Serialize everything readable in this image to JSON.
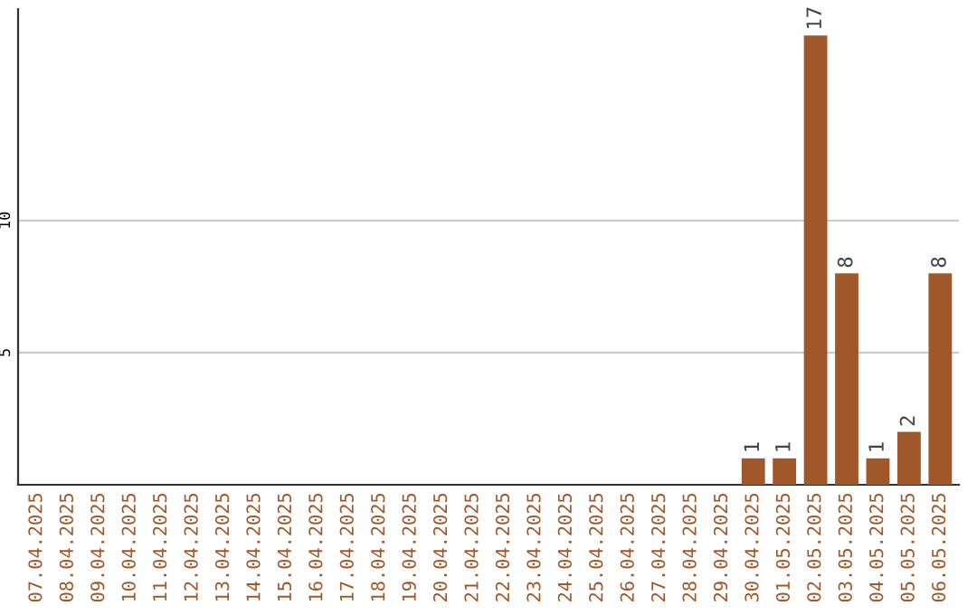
{
  "chart_data": {
    "type": "bar",
    "categories": [
      "07.04.2025",
      "08.04.2025",
      "09.04.2025",
      "10.04.2025",
      "11.04.2025",
      "12.04.2025",
      "13.04.2025",
      "14.04.2025",
      "15.04.2025",
      "16.04.2025",
      "17.04.2025",
      "18.04.2025",
      "19.04.2025",
      "20.04.2025",
      "21.04.2025",
      "22.04.2025",
      "23.04.2025",
      "24.04.2025",
      "25.04.2025",
      "26.04.2025",
      "27.04.2025",
      "28.04.2025",
      "29.04.2025",
      "30.04.2025",
      "01.05.2025",
      "02.05.2025",
      "03.05.2025",
      "04.05.2025",
      "05.05.2025",
      "06.05.2025"
    ],
    "values": [
      0,
      0,
      0,
      0,
      0,
      0,
      0,
      0,
      0,
      0,
      0,
      0,
      0,
      0,
      0,
      0,
      0,
      0,
      0,
      0,
      0,
      0,
      0,
      1,
      1,
      17,
      8,
      1,
      2,
      8
    ],
    "value_labels": [
      null,
      null,
      null,
      null,
      null,
      null,
      null,
      null,
      null,
      null,
      null,
      null,
      null,
      null,
      null,
      null,
      null,
      null,
      null,
      null,
      null,
      null,
      null,
      "1",
      "1",
      "17",
      "8",
      "1",
      "2",
      "8"
    ],
    "color": "#a0582a",
    "ylim": [
      0,
      18
    ],
    "yticks": [
      5,
      10
    ],
    "grid": "y"
  }
}
